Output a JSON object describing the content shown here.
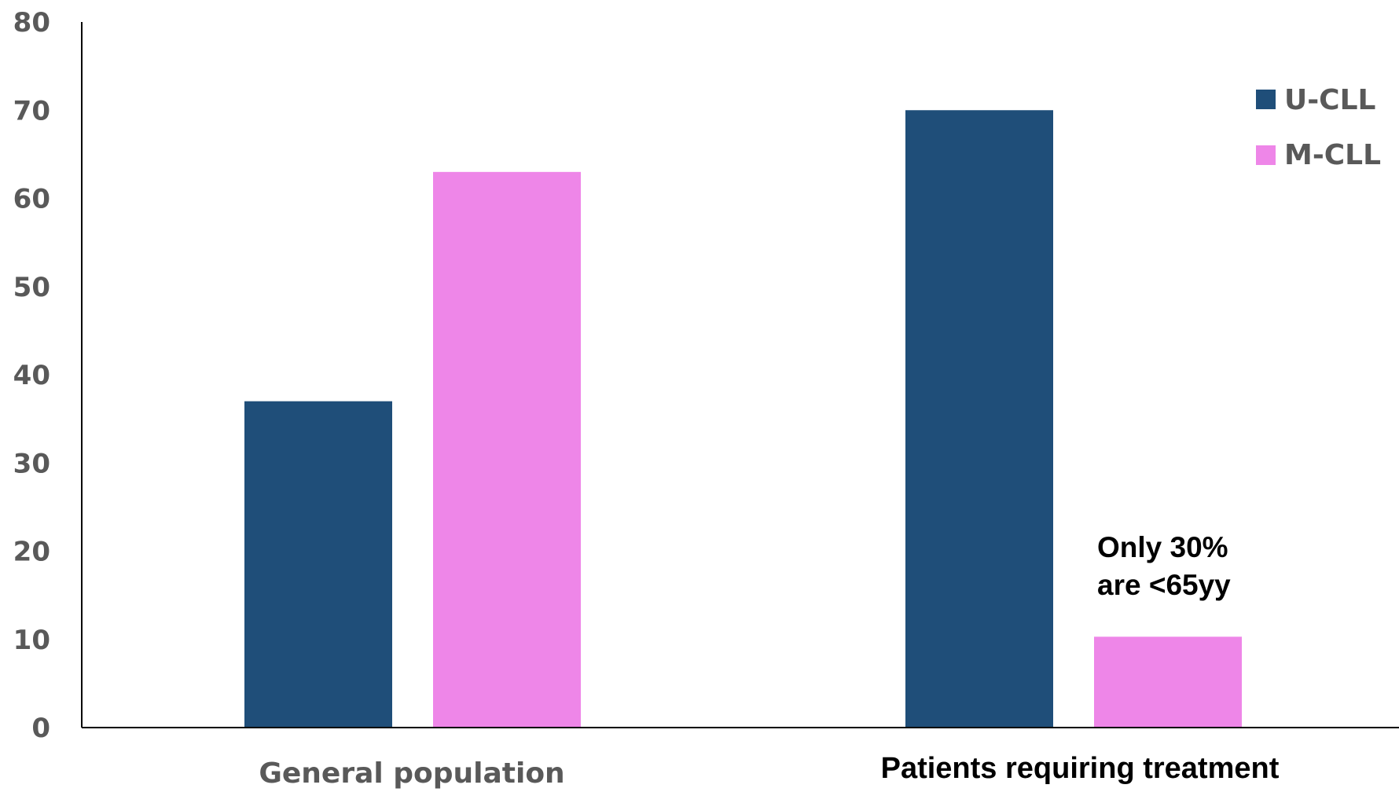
{
  "chart_data": {
    "type": "bar",
    "categories": [
      "General population",
      "Patients requiring treatment"
    ],
    "series": [
      {
        "name": "U-CLL",
        "values": [
          37,
          70
        ],
        "color": "#1F4E79"
      },
      {
        "name": "M-CLL",
        "values": [
          63,
          10.3
        ],
        "color": "#EE86E8"
      }
    ],
    "ylim": [
      0,
      80
    ],
    "yticks": [
      0,
      10,
      20,
      30,
      40,
      50,
      60,
      70,
      80
    ],
    "legend": {
      "placement": "top-right"
    },
    "grid": false,
    "annotation": {
      "lines": [
        "Only 30%",
        "are <65yy"
      ]
    }
  }
}
